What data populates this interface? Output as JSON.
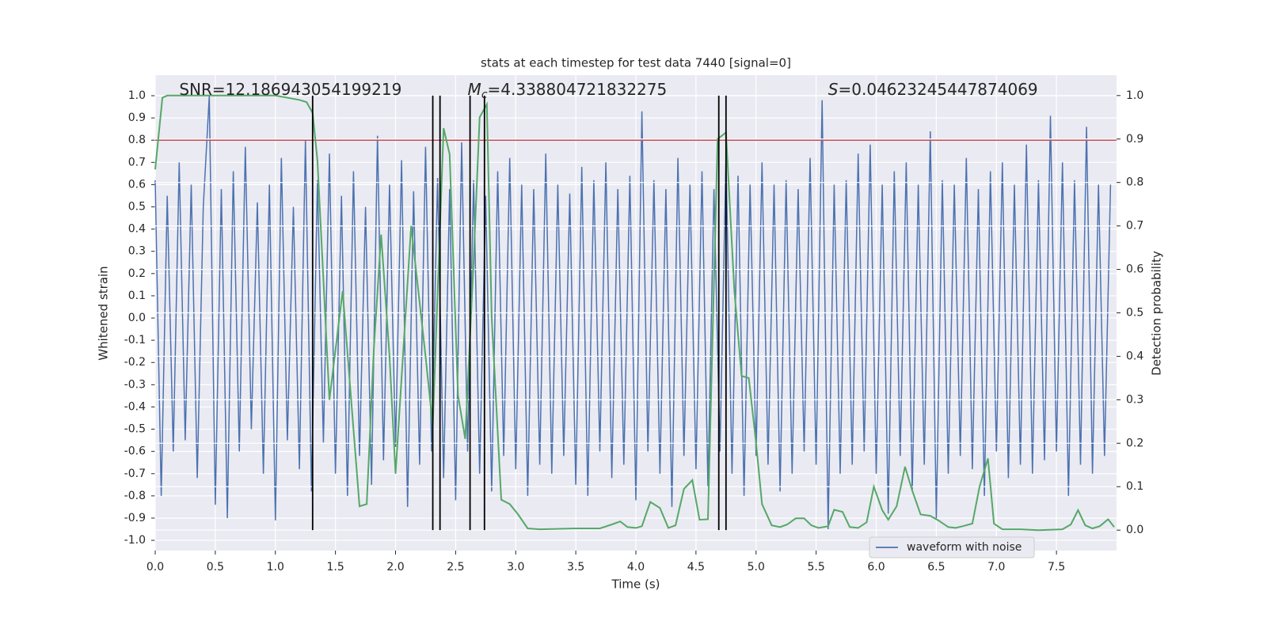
{
  "chart_data": {
    "type": "line",
    "title": "stats at each timestep for test data 7440 [signal=0]",
    "xlabel": "Time (s)",
    "ylabel": "Whitened strain",
    "y2label": "Detection probability",
    "xlim": [
      0,
      8
    ],
    "ylim": [
      -1.046,
      1.0925
    ],
    "y2lim": [
      -0.047,
      1.047
    ],
    "xticks": [
      {
        "value": 0,
        "label": "0.0"
      },
      0.5,
      {
        "value": 1,
        "label": "1.0"
      },
      1.5,
      {
        "value": 2,
        "label": "2.0"
      },
      2.5,
      {
        "value": 3,
        "label": "3.0"
      },
      3.5,
      {
        "value": 4,
        "label": "4.0"
      },
      4.5,
      {
        "value": 5,
        "label": "5.0"
      },
      5.5,
      {
        "value": 6,
        "label": "6.0"
      },
      6.5,
      {
        "value": 7,
        "label": "7.0"
      },
      7.5
    ],
    "yticks": [
      {
        "value": -1,
        "label": "-1.0"
      },
      -0.9,
      -0.8,
      -0.7,
      -0.6,
      -0.5,
      -0.4,
      -0.3,
      -0.2,
      -0.1,
      {
        "value": 0,
        "label": "0.0"
      },
      0.1,
      0.2,
      0.3,
      0.4,
      0.5,
      0.6,
      0.7,
      0.8,
      0.9,
      {
        "value": 1,
        "label": "1.0"
      }
    ],
    "y2ticks": [
      {
        "value": 0,
        "label": "0.0"
      },
      0.1,
      0.2,
      0.3,
      0.4,
      0.5,
      0.6,
      0.7,
      0.8,
      0.9,
      {
        "value": 1,
        "label": "1.0"
      }
    ],
    "grid": true,
    "legend": "lower right",
    "threshold": {
      "value": 0.8,
      "color": "#c44e52"
    },
    "vlines": {
      "x": [
        1.31,
        2.31,
        2.37,
        2.62,
        2.74,
        4.69,
        4.75
      ],
      "span": [
        0,
        1
      ],
      "color": "#000000",
      "axis": "y2"
    },
    "annotations": [
      {
        "text": "SNR=12.186943054199219",
        "x": 0.2
      },
      {
        "symbol": "M",
        "subscript": "c",
        "text": "=4.338804721832275",
        "x": 2.6
      },
      {
        "symbol": "S",
        "text": "=0.04623245447874069",
        "x": 5.6
      }
    ],
    "series": [
      {
        "name": "waveform with noise",
        "color": "#4c72b0",
        "x": [
          0,
          0.05,
          0.1,
          0.15,
          0.2,
          0.25,
          0.3,
          0.35,
          0.4,
          0.45,
          0.5,
          0.55,
          0.6,
          0.65,
          0.7,
          0.75,
          0.8,
          0.85,
          0.9,
          0.95,
          1,
          1.05,
          1.1,
          1.15,
          1.2,
          1.25,
          1.3,
          1.35,
          1.4,
          1.45,
          1.5,
          1.55,
          1.6,
          1.65,
          1.7,
          1.75,
          1.8,
          1.85,
          1.9,
          1.95,
          2,
          2.05,
          2.1,
          2.15,
          2.2,
          2.25,
          2.3,
          2.35,
          2.4,
          2.45,
          2.5,
          2.55,
          2.6,
          2.65,
          2.7,
          2.75,
          2.8,
          2.85,
          2.9,
          2.95,
          3,
          3.05,
          3.1,
          3.15,
          3.2,
          3.25,
          3.3,
          3.35,
          3.4,
          3.45,
          3.5,
          3.55,
          3.6,
          3.65,
          3.7,
          3.75,
          3.8,
          3.85,
          3.9,
          3.95,
          4,
          4.05,
          4.1,
          4.15,
          4.2,
          4.25,
          4.3,
          4.35,
          4.4,
          4.45,
          4.5,
          4.55,
          4.6,
          4.65,
          4.7,
          4.75,
          4.8,
          4.85,
          4.9,
          4.95,
          5,
          5.05,
          5.1,
          5.15,
          5.2,
          5.25,
          5.3,
          5.35,
          5.4,
          5.45,
          5.5,
          5.55,
          5.6,
          5.65,
          5.7,
          5.75,
          5.8,
          5.85,
          5.9,
          5.95,
          6,
          6.05,
          6.1,
          6.15,
          6.2,
          6.25,
          6.3,
          6.35,
          6.4,
          6.45,
          6.5,
          6.55,
          6.6,
          6.65,
          6.7,
          6.75,
          6.8,
          6.85,
          6.9,
          6.95,
          7,
          7.05,
          7.1,
          7.15,
          7.2,
          7.25,
          7.3,
          7.35,
          7.4,
          7.45,
          7.5,
          7.55,
          7.6,
          7.65,
          7.7,
          7.75,
          7.8,
          7.85,
          7.9,
          7.95
        ],
        "values": [
          0.62,
          -0.8,
          0.55,
          -0.6,
          0.7,
          -0.55,
          0.6,
          -0.72,
          0.5,
          1.0,
          -0.84,
          0.58,
          -0.9,
          0.66,
          -0.6,
          0.77,
          -0.5,
          0.52,
          -0.7,
          0.6,
          -0.91,
          0.72,
          -0.55,
          0.5,
          -0.68,
          0.8,
          -0.78,
          0.62,
          -0.56,
          0.74,
          -0.7,
          0.55,
          -0.8,
          0.66,
          -0.62,
          0.5,
          -0.75,
          0.82,
          -0.64,
          0.6,
          -0.58,
          0.71,
          -0.85,
          0.57,
          -0.66,
          0.77,
          -0.6,
          0.63,
          -0.72,
          0.58,
          -0.82,
          0.79,
          -0.6,
          0.62,
          -0.7,
          0.55,
          -0.78,
          0.66,
          -0.62,
          0.72,
          -0.68,
          0.6,
          -0.8,
          0.58,
          -0.66,
          0.74,
          -0.7,
          0.6,
          -0.62,
          0.56,
          -0.75,
          0.68,
          -0.8,
          0.62,
          -0.6,
          0.7,
          -0.72,
          0.58,
          -0.66,
          0.64,
          -0.82,
          0.93,
          -0.6,
          0.62,
          -0.7,
          0.58,
          -0.85,
          0.72,
          -0.62,
          0.6,
          -0.68,
          0.66,
          -0.76,
          0.58,
          -0.6,
          0.72,
          -0.7,
          0.64,
          -0.8,
          0.6,
          -0.62,
          0.7,
          -0.66,
          0.6,
          -0.78,
          0.62,
          -0.7,
          0.58,
          -0.6,
          0.72,
          -0.66,
          0.98,
          -0.95,
          0.6,
          -0.7,
          0.62,
          -0.66,
          0.74,
          -0.6,
          0.78,
          -0.7,
          0.6,
          -0.88,
          0.66,
          -0.62,
          0.7,
          -0.78,
          0.6,
          -0.66,
          0.84,
          -0.9,
          0.62,
          -0.7,
          0.6,
          -0.62,
          0.72,
          -0.68,
          0.58,
          -0.8,
          0.66,
          -0.6,
          0.7,
          -0.72,
          0.6,
          -0.66,
          0.78,
          -0.7,
          0.62,
          -0.64,
          0.91,
          -0.6,
          0.7,
          -0.8,
          0.62,
          -0.66,
          0.86,
          -0.7,
          0.6,
          -0.62,
          0.6
        ]
      },
      {
        "color": "#55a868",
        "axis": "y2",
        "x": [
          0,
          0.06,
          0.1,
          0.5,
          1.0,
          1.2,
          1.26,
          1.31,
          1.35,
          1.45,
          1.56,
          1.7,
          1.76,
          1.82,
          1.88,
          1.95,
          2.0,
          2.13,
          2.25,
          2.31,
          2.4,
          2.45,
          2.52,
          2.58,
          2.65,
          2.7,
          2.76,
          2.8,
          2.88,
          2.95,
          3.02,
          3.1,
          3.2,
          3.5,
          3.7,
          3.8,
          3.87,
          3.93,
          4.0,
          4.05,
          4.12,
          4.2,
          4.27,
          4.33,
          4.4,
          4.47,
          4.53,
          4.6,
          4.68,
          4.75,
          4.82,
          4.88,
          4.94,
          5.0,
          5.05,
          5.13,
          5.2,
          5.26,
          5.33,
          5.4,
          5.46,
          5.52,
          5.6,
          5.65,
          5.72,
          5.78,
          5.85,
          5.92,
          5.98,
          6.05,
          6.1,
          6.17,
          6.24,
          6.3,
          6.37,
          6.45,
          6.52,
          6.6,
          6.66,
          6.72,
          6.8,
          6.86,
          6.93,
          6.98,
          7.05,
          7.2,
          7.35,
          7.55,
          7.62,
          7.68,
          7.74,
          7.8,
          7.86,
          7.93,
          7.98
        ],
        "values": [
          0.83,
          0.995,
          1.0,
          1.0,
          1.0,
          0.99,
          0.985,
          0.96,
          0.85,
          0.3,
          0.55,
          0.055,
          0.06,
          0.42,
          0.68,
          0.4,
          0.13,
          0.7,
          0.4,
          0.24,
          0.925,
          0.865,
          0.31,
          0.21,
          0.62,
          0.95,
          0.98,
          0.49,
          0.07,
          0.06,
          0.036,
          0.004,
          0.002,
          0.004,
          0.004,
          0.013,
          0.02,
          0.007,
          0.005,
          0.009,
          0.065,
          0.051,
          0.005,
          0.011,
          0.095,
          0.115,
          0.024,
          0.025,
          0.9,
          0.915,
          0.55,
          0.355,
          0.35,
          0.2,
          0.06,
          0.011,
          0.007,
          0.013,
          0.027,
          0.027,
          0.011,
          0.005,
          0.009,
          0.047,
          0.042,
          0.007,
          0.005,
          0.018,
          0.1,
          0.046,
          0.024,
          0.055,
          0.146,
          0.091,
          0.036,
          0.033,
          0.022,
          0.007,
          0.005,
          0.009,
          0.015,
          0.1,
          0.165,
          0.015,
          0.002,
          0.002,
          0.0,
          0.002,
          0.013,
          0.046,
          0.011,
          0.004,
          0.009,
          0.025,
          0.007
        ]
      }
    ]
  }
}
